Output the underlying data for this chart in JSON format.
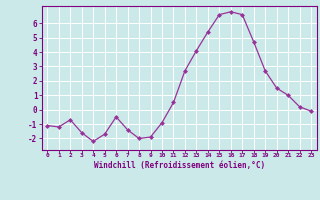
{
  "x": [
    0,
    1,
    2,
    3,
    4,
    5,
    6,
    7,
    8,
    9,
    10,
    11,
    12,
    13,
    14,
    15,
    16,
    17,
    18,
    19,
    20,
    21,
    22,
    23
  ],
  "y": [
    -1.1,
    -1.2,
    -0.7,
    -1.6,
    -2.2,
    -1.7,
    -0.5,
    -1.4,
    -2.0,
    -1.9,
    -0.9,
    0.5,
    2.7,
    4.1,
    5.4,
    6.6,
    6.8,
    6.6,
    4.7,
    2.7,
    1.5,
    1.0,
    0.2,
    -0.1
  ],
  "line_color": "#993399",
  "marker": "D",
  "marker_size": 2.0,
  "line_width": 0.9,
  "bg_color": "#cbe9e9",
  "grid_color": "#ffffff",
  "xlabel": "Windchill (Refroidissement éolien,°C)",
  "tick_color": "#800080",
  "ylim": [
    -2.8,
    7.2
  ],
  "yticks": [
    -2,
    -1,
    0,
    1,
    2,
    3,
    4,
    5,
    6
  ],
  "xtick_labels": [
    "0",
    "1",
    "2",
    "3",
    "4",
    "5",
    "6",
    "7",
    "8",
    "9",
    "10",
    "11",
    "12",
    "13",
    "14",
    "15",
    "16",
    "17",
    "18",
    "19",
    "20",
    "21",
    "22",
    "23"
  ],
  "xlim": [
    -0.5,
    23.5
  ]
}
